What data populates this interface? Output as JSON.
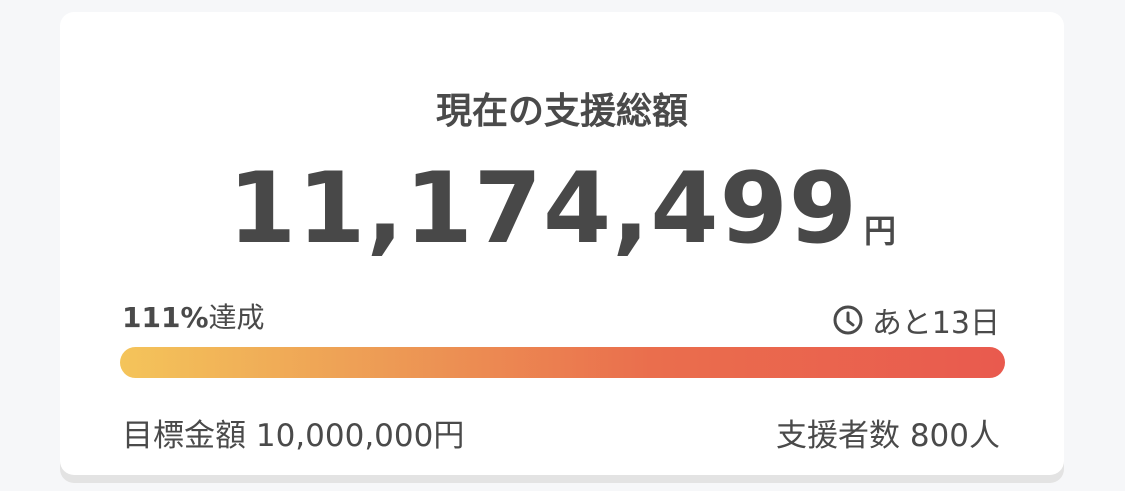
{
  "title": "現在の支援総額",
  "amount": "11,174,499",
  "amount_unit": "円",
  "achievement": {
    "percent": "111%",
    "label": "達成",
    "progress_percent": 111
  },
  "remaining": {
    "icon": "clock-icon",
    "text": "あと13日"
  },
  "goal": "目標金額 10,000,000円",
  "backers": "支援者数 800人",
  "colors": {
    "bar_start": "#f4c45a",
    "bar_end": "#e95a4e",
    "text": "#4a4a4a"
  }
}
